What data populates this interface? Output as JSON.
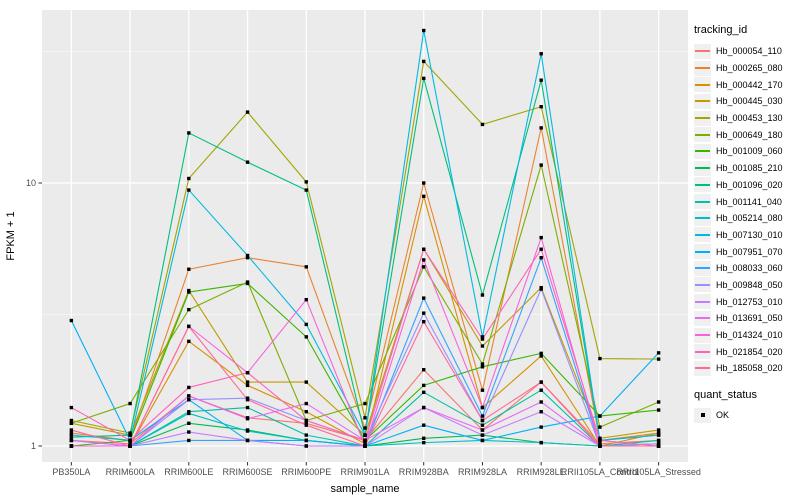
{
  "figure": {
    "xlabel": "sample_name",
    "ylabel": "FPKM + 1",
    "ytick_labels": [
      "10",
      "1"
    ]
  },
  "legend": {
    "title": "tracking_id"
  },
  "legend2": {
    "title": "quant_status",
    "items": [
      {
        "label": "OK"
      }
    ]
  },
  "colors": {
    "panel_bg": "#ebebeb",
    "grid_major": "#ffffff",
    "grid_minor": "#ffffff",
    "axis_text": "#4d4d4d",
    "tick_mark": "#333333",
    "point": "#000000",
    "legend_key_bg": "#f0f0f0"
  },
  "chart_data": {
    "type": "line",
    "title": "",
    "xlabel": "sample_name",
    "ylabel": "FPKM + 1",
    "y_scale": "log10",
    "ylim": [
      0.87,
      45.5
    ],
    "y_major_ticks": [
      1,
      10
    ],
    "y_minor_gridlines": [
      3.1623,
      31.623
    ],
    "grid": true,
    "legend_position": "right",
    "point_marker": "black-square",
    "categories": [
      "PB350LA",
      "RRIM600LA",
      "RRIM600LE",
      "RRIM600SE",
      "RRIM600PE",
      "RRIM901LA",
      "RRIM928BA",
      "RRIM928LA",
      "RRIM928LE",
      "RRII105LA_Control",
      "RRII105LA_Stressed"
    ],
    "series": [
      {
        "name": "Hb_000054_110",
        "color": "#F8766D",
        "values": [
          1.05,
          1.02,
          1.55,
          1.28,
          1.22,
          1.05,
          1.95,
          1.15,
          1.75,
          1.02,
          1.05
        ]
      },
      {
        "name": "Hb_000265_080",
        "color": "#EA8331",
        "values": [
          1.12,
          1.05,
          4.7,
          5.2,
          4.8,
          1.17,
          10.0,
          1.63,
          16.2,
          1.05,
          1.12
        ]
      },
      {
        "name": "Hb_000442_170",
        "color": "#D89000",
        "values": [
          1.0,
          1.0,
          2.5,
          1.7,
          1.35,
          1.02,
          8.9,
          1.4,
          2.2,
          1.0,
          1.12
        ]
      },
      {
        "name": "Hb_000445_030",
        "color": "#C09B00",
        "values": [
          1.22,
          1.1,
          3.9,
          1.75,
          1.75,
          1.1,
          5.6,
          2.4,
          4.0,
          1.07,
          1.15
        ]
      },
      {
        "name": "Hb_000453_130",
        "color": "#A3A500",
        "values": [
          1.25,
          1.12,
          10.4,
          18.6,
          10.1,
          1.28,
          29.0,
          16.7,
          19.5,
          2.15,
          2.14
        ]
      },
      {
        "name": "Hb_000649_180",
        "color": "#7CAE00",
        "values": [
          1.22,
          1.45,
          3.3,
          4.2,
          1.25,
          1.45,
          4.8,
          2.05,
          11.7,
          1.18,
          1.47
        ]
      },
      {
        "name": "Hb_001009_060",
        "color": "#39B600",
        "values": [
          1.0,
          1.05,
          3.85,
          4.15,
          2.6,
          1.05,
          1.7,
          2.0,
          2.25,
          1.3,
          1.37
        ]
      },
      {
        "name": "Hb_001085_210",
        "color": "#00BB4E",
        "values": [
          1.0,
          1.0,
          1.22,
          1.15,
          1.05,
          1.0,
          1.07,
          1.1,
          1.03,
          1.0,
          1.02
        ]
      },
      {
        "name": "Hb_001096_020",
        "color": "#00BF7D",
        "values": [
          1.08,
          1.1,
          15.5,
          12.0,
          9.4,
          1.1,
          25.0,
          3.75,
          24.6,
          1.05,
          1.1
        ]
      },
      {
        "name": "Hb_001141_040",
        "color": "#00C1A3",
        "values": [
          1.05,
          1.0,
          1.35,
          1.4,
          1.1,
          1.0,
          1.6,
          1.2,
          1.63,
          1.0,
          1.05
        ]
      },
      {
        "name": "Hb_005214_080",
        "color": "#00BFC4",
        "values": [
          1.0,
          1.0,
          1.33,
          1.14,
          1.05,
          1.0,
          1.03,
          1.05,
          1.03,
          1.0,
          1.0
        ]
      },
      {
        "name": "Hb_007130_010",
        "color": "#00BAE0",
        "values": [
          1.1,
          1.05,
          9.4,
          5.3,
          2.9,
          1.1,
          38.0,
          2.6,
          31.0,
          1.05,
          1.1
        ]
      },
      {
        "name": "Hb_007951_070",
        "color": "#00B0F6",
        "values": [
          3.0,
          1.05,
          1.5,
          1.05,
          1.05,
          1.0,
          1.2,
          1.05,
          1.18,
          1.3,
          2.26
        ]
      },
      {
        "name": "Hb_008033_060",
        "color": "#35A2FF",
        "values": [
          1.0,
          1.0,
          1.05,
          1.05,
          1.0,
          1.0,
          3.65,
          1.3,
          5.2,
          1.0,
          1.0
        ]
      },
      {
        "name": "Hb_009848_050",
        "color": "#9590FF",
        "values": [
          1.0,
          1.0,
          1.5,
          1.52,
          1.25,
          1.05,
          3.2,
          1.25,
          3.95,
          1.0,
          1.02
        ]
      },
      {
        "name": "Hb_012753_010",
        "color": "#C77CFF",
        "values": [
          1.0,
          1.0,
          1.13,
          1.05,
          1.0,
          1.0,
          1.4,
          1.1,
          1.35,
          1.0,
          1.0
        ]
      },
      {
        "name": "Hb_013691_050",
        "color": "#E76BF3",
        "values": [
          1.05,
          1.0,
          1.55,
          1.27,
          1.45,
          1.05,
          1.4,
          1.15,
          1.47,
          1.0,
          1.0
        ]
      },
      {
        "name": "Hb_014324_010",
        "color": "#FA62DB",
        "values": [
          1.0,
          1.0,
          2.85,
          1.9,
          3.6,
          1.0,
          5.1,
          1.4,
          6.2,
          1.0,
          1.0
        ]
      },
      {
        "name": "Hb_021854_020",
        "color": "#FF62BC",
        "values": [
          1.4,
          1.05,
          1.67,
          1.9,
          1.25,
          1.05,
          5.6,
          2.55,
          5.6,
          1.05,
          1.0
        ]
      },
      {
        "name": "Hb_185058_020",
        "color": "#FF6A98",
        "values": [
          1.15,
          1.0,
          2.85,
          1.5,
          1.2,
          1.0,
          2.97,
          1.25,
          1.75,
          1.0,
          1.0
        ]
      }
    ],
    "quant_status": {
      "title": "quant_status",
      "values": [
        "OK"
      ]
    }
  }
}
